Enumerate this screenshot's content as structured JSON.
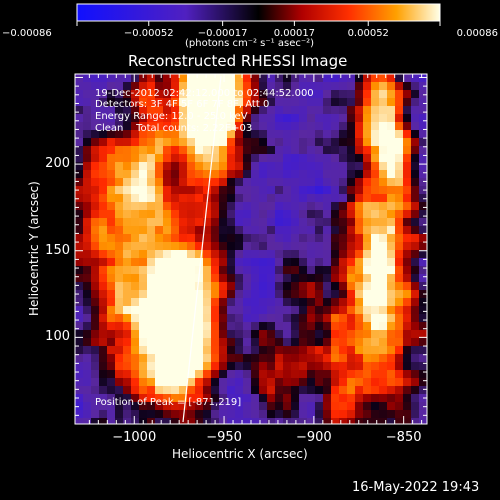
{
  "chart_data": {
    "type": "heatmap",
    "title": "Reconstructed RHESSI Image",
    "xlabel": "Heliocentric X (arcsec)",
    "ylabel": "Heliocentric Y (arcsec)",
    "xlim": [
      -1033,
      -837
    ],
    "ylim": [
      50,
      252
    ],
    "x_ticks": [
      -1000,
      -950,
      -900,
      -850
    ],
    "x_tick_labels": [
      "−1000",
      "−950",
      "−900",
      "−850"
    ],
    "y_ticks": [
      100,
      150,
      200
    ],
    "y_tick_labels": [
      "100",
      "150",
      "200"
    ],
    "colorbar": {
      "range": [
        -0.00086,
        0.00086
      ],
      "ticks": [
        -0.00086,
        -0.00052,
        -0.00017,
        0.00017,
        0.00052,
        0.00086
      ],
      "tick_labels": [
        "−0.00086",
        "−0.00052",
        "−0.00017",
        "0.00017",
        "0.00052",
        "0.00086"
      ],
      "unit_label": "(photons cm⁻² s⁻¹ asec⁻²)"
    },
    "info_lines": [
      "19-Dec-2012 02:42:12.000 to 02:44:52.000",
      "Detectors: 3F 4F 5F 6F 7F 8F, Att 0",
      "Energy Range: 12.0 - 25.0 keV",
      "Clean    Total counts: 2.22E+03"
    ],
    "peak_label": "Position of Peak = [-871,219]",
    "peak_position": [
      -871,
      219
    ],
    "grid": false
  },
  "footer": {
    "timestamp": "16-May-2022 19:43"
  }
}
